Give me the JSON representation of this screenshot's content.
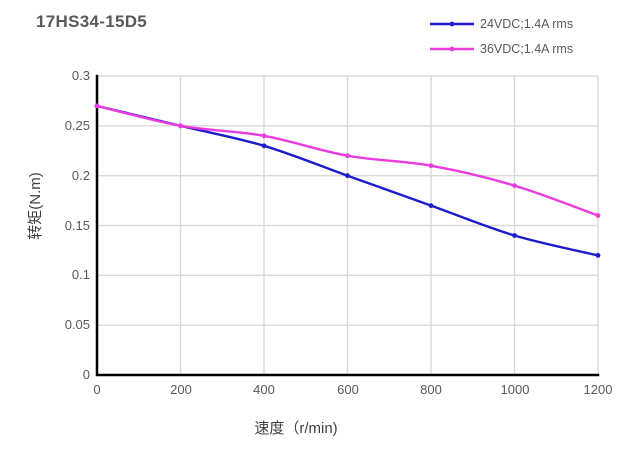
{
  "header": {
    "title": "17HS34-15D5"
  },
  "chart_data": {
    "type": "line",
    "title": "17HS34-15D5",
    "xlabel": "速度（r/min)",
    "ylabel": "转矩(N.m)",
    "x": [
      0,
      200,
      400,
      600,
      800,
      1000,
      1200
    ],
    "series": [
      {
        "name": "24VDC;1.4A rms",
        "color": "#1c1ccd",
        "values": [
          0.27,
          0.25,
          0.23,
          0.2,
          0.17,
          0.14,
          0.12
        ]
      },
      {
        "name": "36VDC;1.4A rms",
        "color": "#ea3cde",
        "values": [
          0.27,
          0.25,
          0.24,
          0.22,
          0.21,
          0.19,
          0.16
        ]
      }
    ],
    "xlim": [
      0,
      1200
    ],
    "ylim": [
      0,
      0.3
    ],
    "x_ticks": [
      0,
      200,
      400,
      600,
      800,
      1000,
      1200
    ],
    "y_ticks": [
      0,
      0.05,
      0.1,
      0.15,
      0.2,
      0.25,
      0.3
    ],
    "grid": true,
    "legend_position": "top-right",
    "colors": {
      "grid": "#d9d9d9",
      "axis": "#000000",
      "tick_text": "#595959",
      "title_text": "#595959"
    }
  }
}
